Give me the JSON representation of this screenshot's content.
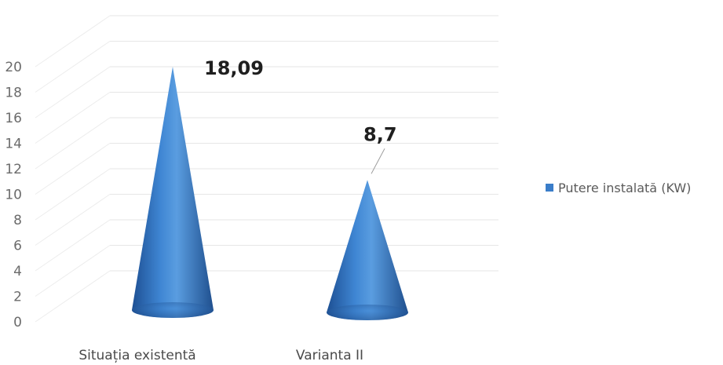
{
  "chart_data": {
    "type": "bar",
    "shape": "cone",
    "categories": [
      "Situația existentă",
      "Varianta II"
    ],
    "series": [
      {
        "name": "Putere instalată (KW)",
        "values": [
          18.09,
          8.7
        ],
        "color": "#3a7dc9"
      }
    ],
    "data_labels": [
      "18,09",
      "8,7"
    ],
    "yticks": [
      "0",
      "2",
      "4",
      "6",
      "8",
      "10",
      "12",
      "14",
      "16",
      "18",
      "20"
    ],
    "ylim": [
      0,
      20
    ],
    "grid": true,
    "legend": "right"
  }
}
